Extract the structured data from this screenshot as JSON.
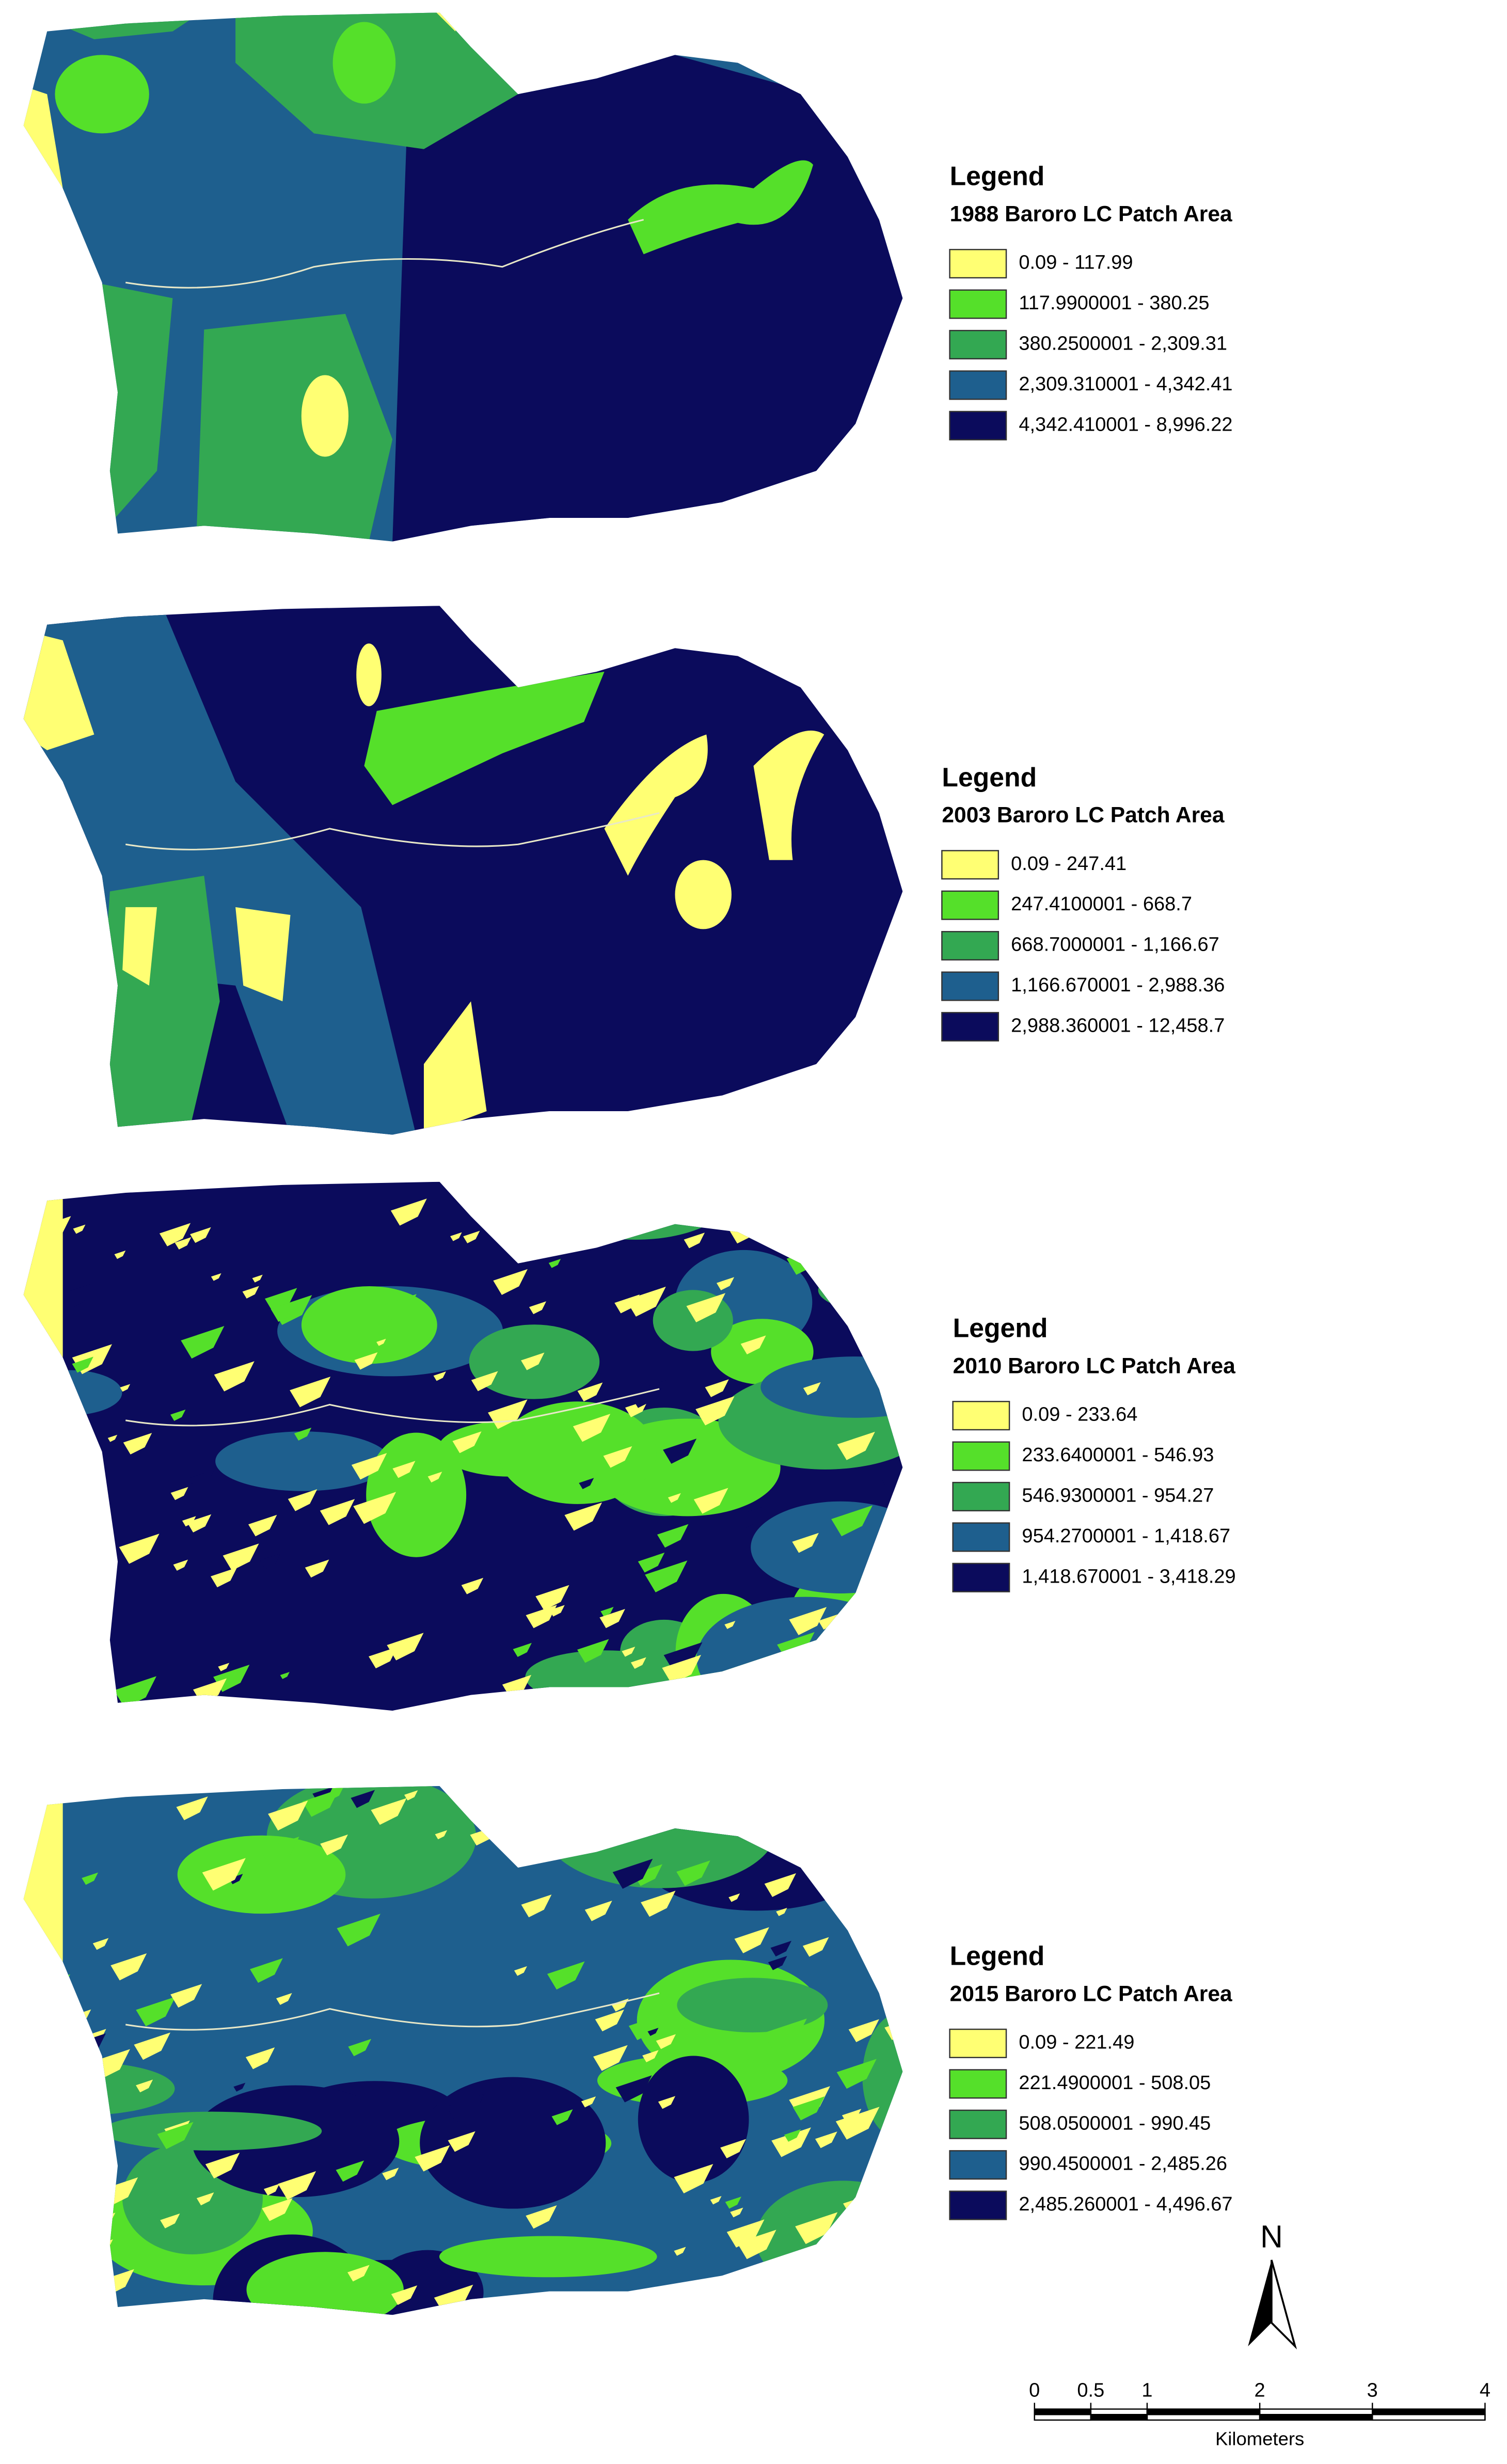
{
  "maps": [
    {
      "legend": {
        "title": "Legend",
        "subtitle": "1988 Baroro LC Patch Area",
        "items": [
          {
            "label": "0.09 - 117.99",
            "color": "#ffff73"
          },
          {
            "label": "117.9900001 - 380.25",
            "color": "#55e02a"
          },
          {
            "label": "380.2500001 - 2,309.31",
            "color": "#33a852"
          },
          {
            "label": "2,309.310001 - 4,342.41",
            "color": "#1e5f8e"
          },
          {
            "label": "4,342.410001 - 8,996.22",
            "color": "#0b0b5c"
          }
        ]
      }
    },
    {
      "legend": {
        "title": "Legend",
        "subtitle": "2003 Baroro LC Patch Area",
        "items": [
          {
            "label": "0.09 - 247.41",
            "color": "#ffff73"
          },
          {
            "label": "247.4100001 - 668.7",
            "color": "#55e02a"
          },
          {
            "label": "668.7000001 - 1,166.67",
            "color": "#33a852"
          },
          {
            "label": "1,166.670001 - 2,988.36",
            "color": "#1e5f8e"
          },
          {
            "label": "2,988.360001 - 12,458.7",
            "color": "#0b0b5c"
          }
        ]
      }
    },
    {
      "legend": {
        "title": "Legend",
        "subtitle": "2010 Baroro LC Patch Area",
        "items": [
          {
            "label": "0.09 - 233.64",
            "color": "#ffff73"
          },
          {
            "label": "233.6400001 - 546.93",
            "color": "#55e02a"
          },
          {
            "label": "546.9300001 - 954.27",
            "color": "#33a852"
          },
          {
            "label": "954.2700001 - 1,418.67",
            "color": "#1e5f8e"
          },
          {
            "label": "1,418.670001 - 3,418.29",
            "color": "#0b0b5c"
          }
        ]
      }
    },
    {
      "legend": {
        "title": "Legend",
        "subtitle": "2015 Baroro LC Patch Area",
        "items": [
          {
            "label": "0.09 - 221.49",
            "color": "#ffff73"
          },
          {
            "label": "221.4900001 - 508.05",
            "color": "#55e02a"
          },
          {
            "label": "508.0500001 - 990.45",
            "color": "#33a852"
          },
          {
            "label": "990.4500001 - 2,485.26",
            "color": "#1e5f8e"
          },
          {
            "label": "2,485.260001 - 4,496.67",
            "color": "#0b0b5c"
          }
        ]
      }
    }
  ],
  "north_arrow": {
    "label": "N"
  },
  "scale_bar": {
    "ticks": [
      0,
      0.5,
      1,
      2,
      3,
      4
    ],
    "unit": "Kilometers"
  }
}
